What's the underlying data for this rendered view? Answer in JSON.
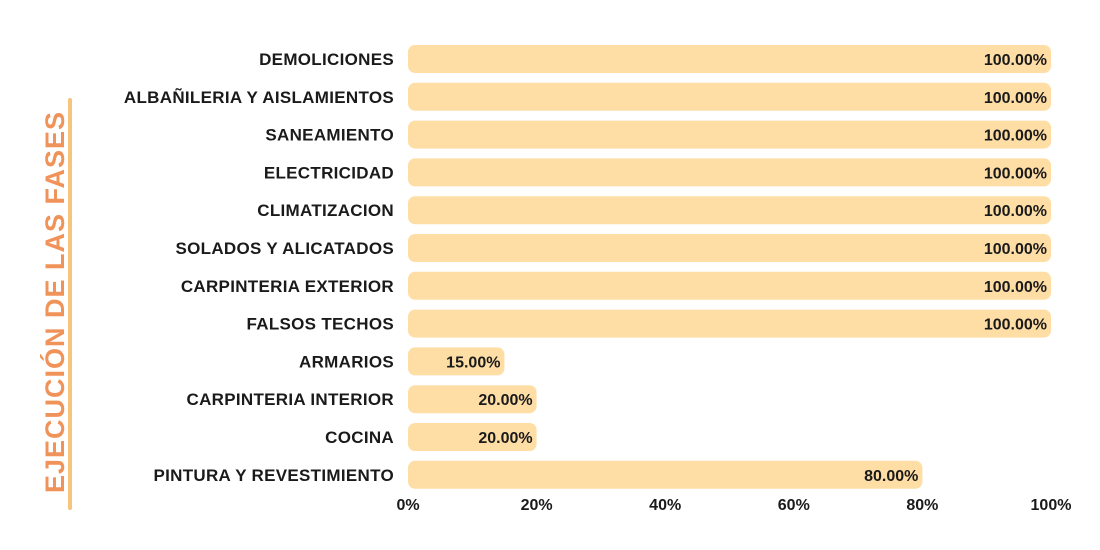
{
  "colors": {
    "bar": "#ffdea6",
    "title": "#f0935a",
    "title_line": "#f6c47b",
    "text": "#1a1a1a"
  },
  "chart_data": {
    "type": "bar",
    "orientation": "horizontal",
    "title": "",
    "ylabel": "EJECUCIÓN DE LAS FASES",
    "xlabel": "",
    "xlim": [
      0,
      100
    ],
    "x_ticks": [
      "0%",
      "20%",
      "40%",
      "60%",
      "80%",
      "100%"
    ],
    "grid": false,
    "categories": [
      "DEMOLICIONES",
      "ALBAÑILERIA Y AISLAMIENTOS",
      "SANEAMIENTO",
      "ELECTRICIDAD",
      "CLIMATIZACION",
      "SOLADOS Y ALICATADOS",
      "CARPINTERIA EXTERIOR",
      "FALSOS TECHOS",
      "ARMARIOS",
      "CARPINTERIA INTERIOR",
      "COCINA",
      "PINTURA Y REVESTIMIENTO"
    ],
    "values": [
      100,
      100,
      100,
      100,
      100,
      100,
      100,
      100,
      15,
      20,
      20,
      80
    ],
    "value_labels": [
      "100.00%",
      "100.00%",
      "100.00%",
      "100.00%",
      "100.00%",
      "100.00%",
      "100.00%",
      "100.00%",
      "15.00%",
      "20.00%",
      "20.00%",
      "80.00%"
    ]
  }
}
